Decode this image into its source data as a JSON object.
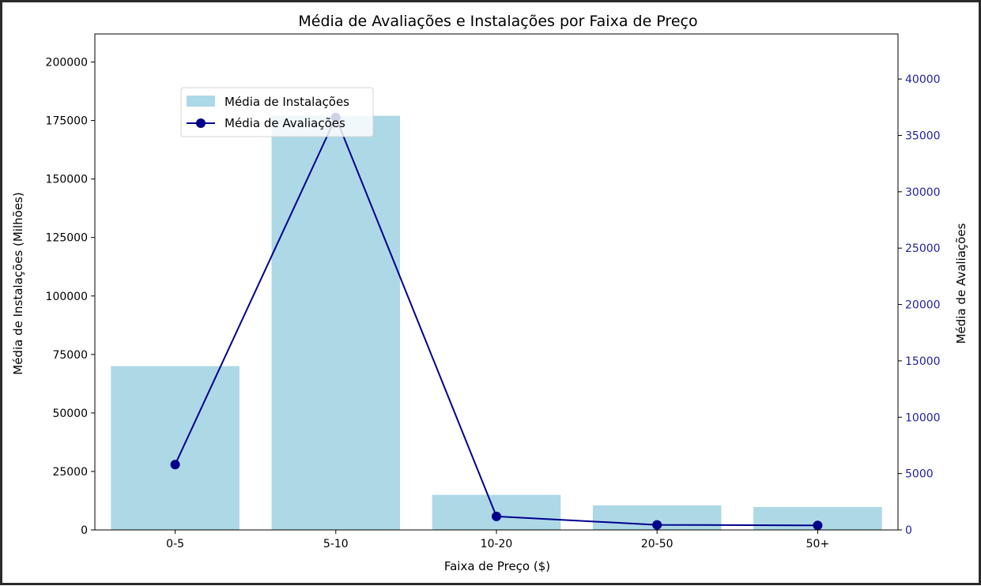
{
  "chart_data": {
    "type": "bar+line",
    "title": "Média de Avaliações e Instalações por Faixa de Preço",
    "xlabel": "Faixa de Preço ($)",
    "ylabel_left": "Média de Instalações (Milhões)",
    "ylabel_right": "Média de Avaliações",
    "categories": [
      "0-5",
      "5-10",
      "10-20",
      "20-50",
      "50+"
    ],
    "left_axis": {
      "ylim": [
        0,
        212000
      ],
      "ticks": [
        0,
        25000,
        50000,
        75000,
        100000,
        125000,
        150000,
        175000,
        200000
      ],
      "tick_labels": [
        "0",
        "25000",
        "50000",
        "75000",
        "100000",
        "125000",
        "150000",
        "175000",
        "200000"
      ]
    },
    "right_axis": {
      "ylim": [
        0,
        44000
      ],
      "ticks": [
        0,
        5000,
        10000,
        15000,
        20000,
        25000,
        30000,
        35000,
        40000
      ],
      "tick_labels": [
        "0",
        "5000",
        "10000",
        "15000",
        "20000",
        "25000",
        "30000",
        "35000",
        "40000"
      ],
      "color": "#1f1fa6"
    },
    "series": [
      {
        "name": "Média de Instalações",
        "kind": "bar",
        "axis": "left",
        "color": "#add8e6",
        "values": [
          70000,
          177000,
          15000,
          10500,
          9800
        ]
      },
      {
        "name": "Média de Avaliações",
        "kind": "line",
        "axis": "right",
        "color": "#00008b",
        "values": [
          5800,
          36600,
          1200,
          450,
          400
        ]
      }
    ],
    "legend_position": "upper-left"
  }
}
